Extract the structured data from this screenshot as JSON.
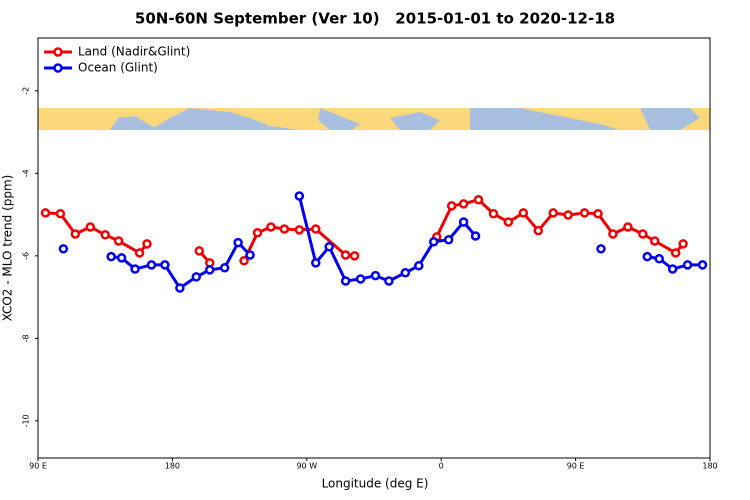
{
  "chart_data": {
    "type": "line",
    "title": "50N-60N September (Ver 10)   2015-01-01 to 2020-12-18",
    "x_label": "Longitude (deg E)",
    "y_label": "XCO2 - MLO trend (ppm)",
    "xlim": [
      90,
      540
    ],
    "xticks": [
      {
        "value": 90,
        "label": "90 E"
      },
      {
        "value": 180,
        "label": "180"
      },
      {
        "value": 270,
        "label": "90 W"
      },
      {
        "value": 360,
        "label": "0"
      },
      {
        "value": 450,
        "label": "90 E"
      },
      {
        "value": 540,
        "label": "180"
      }
    ],
    "ylim": [
      -10.9,
      -0.72
    ],
    "yticks": [
      -2,
      -4,
      -6,
      -8,
      -10
    ],
    "legend": "top-left",
    "series": [
      {
        "name": "Land (Nadir&Glint)",
        "color": "#ee0000",
        "x": [
          95,
          105,
          115,
          125,
          135,
          144,
          158,
          163,
          null,
          198,
          205,
          null,
          228,
          237,
          246,
          255,
          265,
          276,
          296,
          302,
          null,
          357,
          367,
          375,
          385,
          395,
          405,
          415,
          425,
          435,
          445,
          456,
          465,
          475,
          485,
          495,
          503,
          517,
          522
        ],
        "values": [
          -4.96,
          -4.98,
          -5.47,
          -5.3,
          -5.49,
          -5.64,
          -5.93,
          -5.71,
          null,
          -5.88,
          -6.17,
          null,
          -6.12,
          -5.44,
          -5.3,
          -5.35,
          -5.37,
          -5.35,
          -5.98,
          -6.0,
          null,
          -5.54,
          -4.79,
          -4.74,
          -4.64,
          -4.98,
          -5.18,
          -4.96,
          -5.39,
          -4.96,
          -5.01,
          -4.96,
          -4.98,
          -5.47,
          -5.3,
          -5.47,
          -5.64,
          -5.93,
          -5.71
        ]
      },
      {
        "name": "Ocean (Glint)",
        "color": "#0000ee",
        "x": [
          107,
          null,
          139,
          146,
          155,
          166,
          175,
          185,
          196,
          205,
          215,
          224,
          232,
          null,
          265,
          276,
          285,
          296,
          306,
          316,
          325,
          336,
          345,
          355,
          365,
          375,
          383,
          null,
          467,
          null,
          498,
          506,
          515,
          525,
          535
        ],
        "values": [
          -5.83,
          null,
          -6.02,
          -6.05,
          -6.32,
          -6.22,
          -6.22,
          -6.78,
          -6.51,
          -6.34,
          -6.29,
          -5.68,
          -5.98,
          null,
          -4.55,
          -6.17,
          -5.78,
          -6.61,
          -6.56,
          -6.48,
          -6.61,
          -6.41,
          -6.24,
          -5.66,
          -5.61,
          -5.18,
          -5.52,
          null,
          -5.83,
          null,
          -6.02,
          -6.07,
          -6.32,
          -6.22,
          -6.22
        ]
      }
    ]
  }
}
